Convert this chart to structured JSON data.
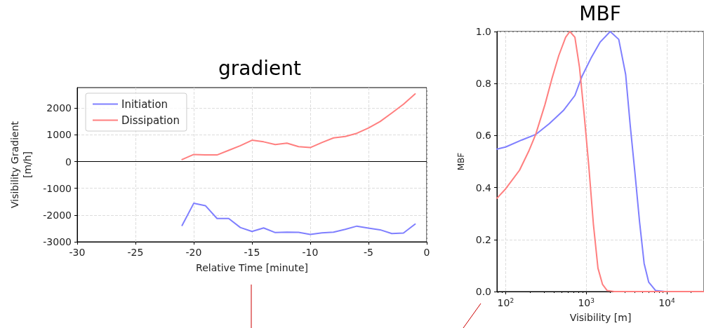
{
  "chart_data": [
    {
      "type": "line",
      "title": "gradient",
      "xlabel": "Relative Time [minute]",
      "ylabel": "Visibility Gradient\n[m/h]",
      "x": [
        -21,
        -20,
        -19,
        -18,
        -17,
        -16,
        -15,
        -14,
        -13,
        -12,
        -11,
        -10,
        -9,
        -8,
        -7,
        -6,
        -5,
        -4,
        -3,
        -2,
        -1
      ],
      "series": [
        {
          "name": "Initiation",
          "color": "#7f7fff",
          "values": [
            -2388,
            -1560,
            -1647,
            -2129,
            -2129,
            -2466,
            -2612,
            -2483,
            -2655,
            -2638,
            -2647,
            -2724,
            -2664,
            -2638,
            -2534,
            -2414,
            -2491,
            -2552,
            -2690,
            -2672,
            -2336
          ]
        },
        {
          "name": "Dissipation",
          "color": "#ff7f7f",
          "values": [
            78,
            267,
            250,
            250,
            422,
            595,
            802,
            741,
            638,
            690,
            560,
            526,
            716,
            888,
            940,
            1060,
            1259,
            1500,
            1819,
            2147,
            2534
          ]
        }
      ],
      "xlim": [
        -30,
        0
      ],
      "xticks": [
        -30,
        -25,
        -20,
        -15,
        -10,
        -5,
        0
      ],
      "ylim": [
        -3000,
        2770
      ],
      "yticks": [
        -3000,
        -2000,
        -1000,
        0,
        1000,
        2000
      ],
      "ref_lines": [
        {
          "axis": "y",
          "value": 0,
          "label": null,
          "color": "#000000"
        }
      ],
      "grid": true,
      "legend": "top left",
      "marker": "none",
      "line_style": "solid"
    },
    {
      "type": "line",
      "title": "MBF",
      "xlabel": "Visibility [m]",
      "ylabel": "MBF",
      "log": "x",
      "series": [
        {
          "color": "#7f7fff",
          "x": [
            78,
            100,
            159,
            236,
            350,
            520,
            724,
            882,
            1149,
            1495,
            1986,
            2535,
            3090,
            3525,
            4025,
            4593,
            5240,
            5975,
            7280,
            9485,
            29000
          ],
          "values": [
            0.548,
            0.556,
            0.583,
            0.604,
            0.646,
            0.696,
            0.754,
            0.826,
            0.898,
            0.96,
            1.0,
            0.97,
            0.835,
            0.637,
            0.458,
            0.269,
            0.108,
            0.036,
            0.004,
            0,
            0
          ]
        },
        {
          "color": "#ff7f7f",
          "x": [
            78,
            100,
            149,
            193,
            236,
            307,
            374,
            456,
            556,
            627,
            724,
            826,
            943,
            1076,
            1228,
            1400,
            1597,
            1822,
            2223,
            29000
          ],
          "values": [
            0.359,
            0.395,
            0.467,
            0.539,
            0.604,
            0.718,
            0.817,
            0.907,
            0.978,
            1.0,
            0.978,
            0.862,
            0.682,
            0.485,
            0.26,
            0.09,
            0.027,
            0.004,
            0,
            0
          ]
        }
      ],
      "xlim": [
        78,
        29000
      ],
      "xticks": [
        {
          "value": 100,
          "label": "10$^{2}$"
        },
        {
          "value": 1000,
          "label": "10$^{3}$"
        },
        {
          "value": 10000,
          "label": "10$^{4}$"
        }
      ],
      "ylim": [
        0,
        1
      ],
      "yticks": [
        {
          "value": 0,
          "label": "0.0"
        },
        {
          "value": 0.2,
          "label": "0.2"
        },
        {
          "value": 0.4,
          "label": "0.4"
        },
        {
          "value": 0.6,
          "label": "0.6"
        },
        {
          "value": 0.8,
          "label": "0.8"
        },
        {
          "value": 1,
          "label": "1.0"
        }
      ],
      "grid": true,
      "legend": false,
      "marker": "none",
      "line_style": "solid"
    }
  ]
}
